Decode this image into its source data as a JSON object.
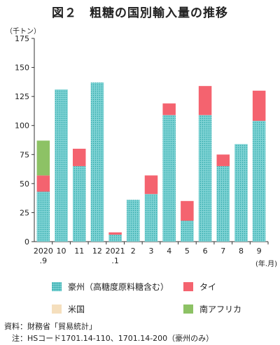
{
  "title": "図２　粗糖の国別輸入量の推移",
  "chart_data": {
    "type": "bar",
    "stacked": true,
    "unit": "（千トン）",
    "xunit": "(年.月)",
    "ylim": [
      0,
      175
    ],
    "yticks": [
      0,
      25,
      50,
      75,
      100,
      125,
      150,
      175
    ],
    "categories": [
      "2020\n.9",
      "10",
      "11",
      "12",
      "2021\n.1",
      "2",
      "3",
      "4",
      "5",
      "6",
      "7",
      "8",
      "9"
    ],
    "series": [
      {
        "name": "豪州（高糖度原料糖含む）",
        "color": "#7fd3d4",
        "values": [
          43,
          131,
          65,
          137,
          6,
          36,
          41,
          109,
          18,
          109,
          65,
          84,
          104
        ]
      },
      {
        "name": "タイ",
        "color": "#f4636f",
        "values": [
          14,
          0,
          15,
          0,
          2,
          0,
          16,
          10,
          17,
          25,
          10,
          0,
          26
        ]
      },
      {
        "name": "米国",
        "color": "#f5dfbd",
        "values": [
          0,
          0,
          0,
          0,
          0,
          0,
          0,
          0,
          0,
          0,
          0,
          0,
          0
        ]
      },
      {
        "name": "南アフリカ",
        "color": "#8dc265",
        "values": [
          30,
          0,
          0,
          0,
          0,
          0,
          0,
          0,
          0,
          0,
          0,
          0,
          0
        ]
      }
    ]
  },
  "notes": {
    "source": "資料：財務省「貿易統計」",
    "note": "　注：HSコード1701.14-110、1701.14-200（豪州のみ）"
  }
}
